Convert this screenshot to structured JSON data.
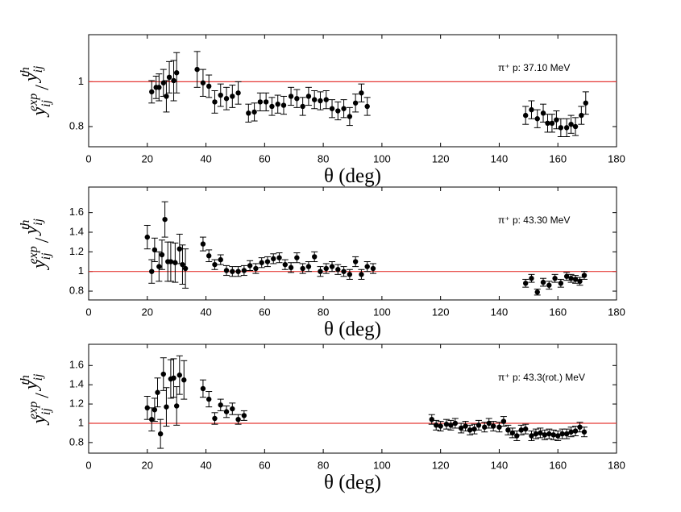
{
  "chart_data": [
    {
      "type": "scatter",
      "xlabel": "θ (deg)",
      "ylabel": [
        "y",
        "ij",
        "exp",
        "/",
        "y",
        "ij",
        "th"
      ],
      "annotation": "π⁺ p: 37.10 MeV",
      "xlim": [
        0,
        180
      ],
      "xticks": [
        0,
        20,
        40,
        60,
        80,
        100,
        120,
        140,
        160,
        180
      ],
      "ylim": [
        0.71,
        1.21
      ],
      "yticks": [
        0.8,
        1
      ],
      "reference_line": 1,
      "reference_color": "#e53935",
      "color": "#000000",
      "x": [
        21.5,
        23,
        24,
        25.5,
        26.5,
        27.5,
        29,
        30,
        37,
        39,
        41,
        43,
        45,
        47,
        49,
        51,
        54.5,
        56.5,
        58.5,
        60.5,
        62.5,
        64.5,
        66.5,
        69,
        71,
        73,
        75,
        77,
        79,
        81,
        83,
        85,
        87,
        89,
        91,
        93,
        95,
        149,
        151,
        153,
        155,
        156.5,
        158,
        159.5,
        161,
        163,
        164.5,
        166,
        168,
        169.5
      ],
      "values": [
        0.955,
        0.975,
        0.975,
        0.995,
        0.935,
        1.02,
        1.005,
        1.04,
        1.055,
        0.995,
        0.98,
        0.91,
        0.94,
        0.925,
        0.935,
        0.95,
        0.86,
        0.865,
        0.91,
        0.91,
        0.89,
        0.9,
        0.895,
        0.935,
        0.925,
        0.89,
        0.935,
        0.92,
        0.915,
        0.92,
        0.88,
        0.87,
        0.88,
        0.845,
        0.905,
        0.95,
        0.89,
        0.85,
        0.875,
        0.835,
        0.86,
        0.815,
        0.815,
        0.83,
        0.795,
        0.795,
        0.81,
        0.8,
        0.85,
        0.905
      ],
      "errors": [
        0.05,
        0.05,
        0.06,
        0.06,
        0.07,
        0.07,
        0.09,
        0.09,
        0.08,
        0.06,
        0.05,
        0.05,
        0.05,
        0.05,
        0.05,
        0.05,
        0.04,
        0.04,
        0.04,
        0.04,
        0.04,
        0.04,
        0.04,
        0.04,
        0.04,
        0.04,
        0.04,
        0.04,
        0.04,
        0.04,
        0.04,
        0.04,
        0.04,
        0.04,
        0.04,
        0.04,
        0.04,
        0.04,
        0.04,
        0.04,
        0.04,
        0.04,
        0.04,
        0.04,
        0.04,
        0.04,
        0.04,
        0.04,
        0.04,
        0.05
      ]
    },
    {
      "type": "scatter",
      "xlabel": "θ (deg)",
      "ylabel": [
        "y",
        "ij",
        "exp",
        "/",
        "y",
        "ij",
        "th"
      ],
      "annotation": "π⁺ p: 43.30 MeV",
      "xlim": [
        0,
        180
      ],
      "xticks": [
        0,
        20,
        40,
        60,
        80,
        100,
        120,
        140,
        160,
        180
      ],
      "ylim": [
        0.71,
        1.86
      ],
      "yticks": [
        0.8,
        1,
        1.2,
        1.4,
        1.6
      ],
      "reference_line": 1,
      "reference_color": "#e53935",
      "color": "#000000",
      "x": [
        20,
        21.5,
        22.5,
        24,
        25,
        26,
        27,
        28,
        29.5,
        31,
        32,
        33,
        39,
        41,
        43,
        45,
        47,
        49,
        51,
        53,
        55,
        57,
        59,
        61,
        63,
        65,
        67,
        69,
        71,
        73,
        75,
        77,
        79,
        81,
        83,
        85,
        87,
        89,
        91,
        93,
        95,
        97,
        149,
        151,
        153,
        155,
        157,
        159,
        161,
        163,
        164.5,
        166,
        167.5,
        169
      ],
      "values": [
        1.35,
        1.0,
        1.22,
        1.05,
        1.17,
        1.53,
        1.1,
        1.1,
        1.09,
        1.23,
        1.07,
        1.03,
        1.28,
        1.16,
        1.07,
        1.12,
        1.01,
        1.0,
        1.0,
        1.01,
        1.06,
        1.03,
        1.09,
        1.1,
        1.13,
        1.14,
        1.07,
        1.04,
        1.14,
        1.03,
        1.05,
        1.15,
        1.0,
        1.03,
        1.05,
        1.02,
        1.0,
        0.97,
        1.1,
        0.97,
        1.05,
        1.03,
        0.88,
        0.93,
        0.79,
        0.89,
        0.86,
        0.93,
        0.88,
        0.95,
        0.93,
        0.92,
        0.9,
        0.96
      ],
      "errors": [
        0.12,
        0.12,
        0.12,
        0.15,
        0.15,
        0.18,
        0.2,
        0.2,
        0.2,
        0.15,
        0.2,
        0.2,
        0.07,
        0.06,
        0.05,
        0.05,
        0.05,
        0.05,
        0.05,
        0.05,
        0.05,
        0.05,
        0.05,
        0.05,
        0.05,
        0.05,
        0.05,
        0.05,
        0.05,
        0.05,
        0.05,
        0.05,
        0.05,
        0.05,
        0.05,
        0.05,
        0.05,
        0.05,
        0.05,
        0.05,
        0.05,
        0.05,
        0.04,
        0.04,
        0.03,
        0.04,
        0.04,
        0.04,
        0.04,
        0.04,
        0.04,
        0.04,
        0.04,
        0.04
      ]
    },
    {
      "type": "scatter",
      "xlabel": "θ (deg)",
      "ylabel": [
        "y",
        "ij",
        "exp",
        "/",
        "y",
        "ij",
        "th"
      ],
      "annotation": "π⁺ p: 43.3(rot.) MeV",
      "xlim": [
        0,
        180
      ],
      "xticks": [
        0,
        20,
        40,
        60,
        80,
        100,
        120,
        140,
        160,
        180
      ],
      "ylim": [
        0.69,
        1.82
      ],
      "yticks": [
        0.8,
        1,
        1.2,
        1.4,
        1.6
      ],
      "reference_line": 1,
      "reference_color": "#e53935",
      "color": "#000000",
      "x": [
        20,
        21.5,
        22.5,
        23.5,
        24.5,
        25.5,
        26.5,
        28,
        29,
        30,
        31,
        32.5,
        39,
        41,
        43,
        45,
        47,
        49,
        51,
        53,
        117,
        118.5,
        120,
        122,
        123.5,
        125,
        127,
        128.5,
        130,
        131.5,
        133,
        135,
        136.5,
        138,
        140,
        141.5,
        143,
        144.5,
        146,
        147.5,
        149,
        151,
        152.5,
        154,
        155.5,
        157,
        158.5,
        160,
        161.5,
        163,
        164.5,
        166,
        167.5,
        169
      ],
      "values": [
        1.16,
        1.04,
        1.14,
        1.32,
        0.89,
        1.51,
        1.17,
        1.46,
        1.47,
        1.18,
        1.5,
        1.45,
        1.36,
        1.25,
        1.05,
        1.19,
        1.12,
        1.15,
        1.04,
        1.08,
        1.04,
        0.98,
        0.97,
        0.99,
        0.98,
        1.0,
        0.95,
        0.97,
        0.93,
        0.94,
        0.98,
        0.96,
        1.0,
        0.97,
        0.96,
        1.02,
        0.93,
        0.9,
        0.87,
        0.93,
        0.94,
        0.87,
        0.89,
        0.9,
        0.88,
        0.89,
        0.88,
        0.87,
        0.89,
        0.89,
        0.91,
        0.92,
        0.96,
        0.91
      ],
      "errors": [
        0.12,
        0.12,
        0.12,
        0.15,
        0.15,
        0.17,
        0.2,
        0.2,
        0.2,
        0.2,
        0.2,
        0.2,
        0.09,
        0.08,
        0.06,
        0.06,
        0.06,
        0.06,
        0.05,
        0.05,
        0.05,
        0.05,
        0.05,
        0.05,
        0.05,
        0.05,
        0.05,
        0.05,
        0.05,
        0.05,
        0.05,
        0.05,
        0.05,
        0.05,
        0.05,
        0.05,
        0.05,
        0.05,
        0.05,
        0.05,
        0.05,
        0.05,
        0.05,
        0.05,
        0.05,
        0.05,
        0.05,
        0.05,
        0.05,
        0.05,
        0.05,
        0.05,
        0.05,
        0.05
      ]
    }
  ]
}
